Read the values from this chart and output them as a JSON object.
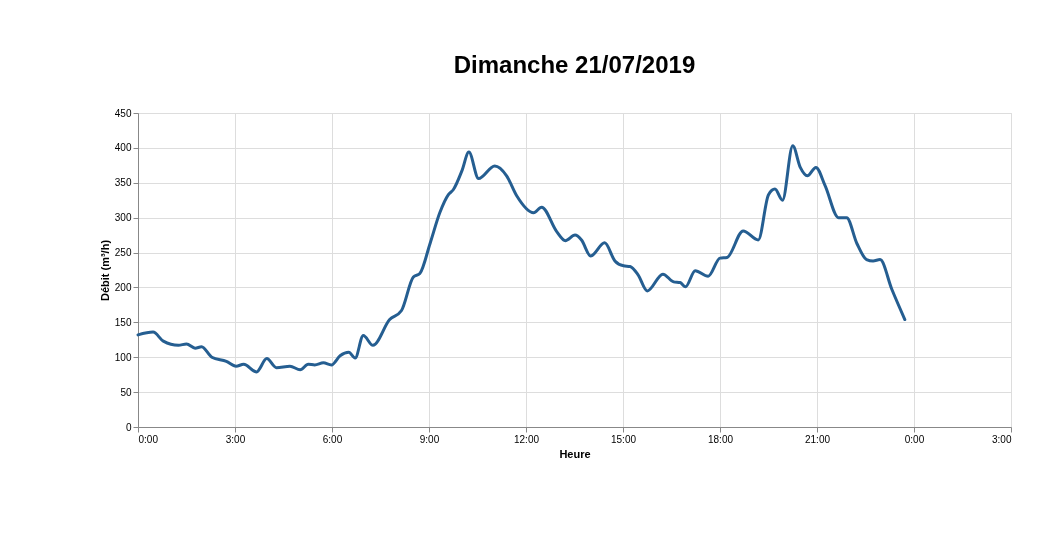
{
  "chart_data": {
    "type": "line",
    "title": "Dimanche 21/07/2019",
    "xlabel": "Heure",
    "ylabel": "Débit (m³/h)",
    "x": [
      "2019-07-21T00:00",
      "2019-07-21T00:28",
      "2019-07-21T00:47",
      "2019-07-21T01:15",
      "2019-07-21T01:30",
      "2019-07-21T01:46",
      "2019-07-21T01:58",
      "2019-07-21T02:17",
      "2019-07-21T02:44",
      "2019-07-21T03:02",
      "2019-07-21T03:16",
      "2019-07-21T03:40",
      "2019-07-21T03:59",
      "2019-07-21T04:17",
      "2019-07-21T04:42",
      "2019-07-21T05:01",
      "2019-07-21T05:16",
      "2019-07-21T05:28",
      "2019-07-21T05:44",
      "2019-07-21T05:59",
      "2019-07-21T06:15",
      "2019-07-21T06:31",
      "2019-07-21T06:43",
      "2019-07-21T06:58",
      "2019-07-21T07:16",
      "2019-07-21T07:47",
      "2019-07-21T08:09",
      "2019-07-21T08:31",
      "2019-07-21T08:43",
      "2019-07-21T09:02",
      "2019-07-21T09:20",
      "2019-07-21T09:36",
      "2019-07-21T09:45",
      "2019-07-21T10:01",
      "2019-07-21T10:14",
      "2019-07-21T10:32",
      "2019-07-21T11:02",
      "2019-07-21T11:24",
      "2019-07-21T11:43",
      "2019-07-21T12:14",
      "2019-07-21T12:29",
      "2019-07-21T12:57",
      "2019-07-21T13:13",
      "2019-07-21T13:31",
      "2019-07-21T13:43",
      "2019-07-21T14:00",
      "2019-07-21T14:26",
      "2019-07-21T14:45",
      "2019-07-21T15:01",
      "2019-07-21T15:13",
      "2019-07-21T15:28",
      "2019-07-21T15:45",
      "2019-07-21T16:14",
      "2019-07-21T16:34",
      "2019-07-21T16:46",
      "2019-07-21T16:56",
      "2019-07-21T17:14",
      "2019-07-21T17:38",
      "2019-07-21T18:00",
      "2019-07-21T18:13",
      "2019-07-21T18:43",
      "2019-07-21T19:11",
      "2019-07-21T19:30",
      "2019-07-21T19:42",
      "2019-07-21T19:56",
      "2019-07-21T20:15",
      "2019-07-21T20:29",
      "2019-07-21T20:42",
      "2019-07-21T20:58",
      "2019-07-21T21:15",
      "2019-07-21T21:40",
      "2019-07-21T21:55",
      "2019-07-21T22:14",
      "2019-07-21T22:32",
      "2019-07-21T22:44",
      "2019-07-21T22:57",
      "2019-07-21T23:19",
      "2019-07-21T23:43"
    ],
    "series": [
      {
        "color": "#255e91",
        "values": [
          132,
          136,
          123,
          117,
          119,
          113,
          115,
          100,
          94,
          87,
          90,
          79,
          98,
          85,
          87,
          82,
          90,
          89,
          92,
          89,
          102,
          107,
          99,
          131,
          117,
          154,
          167,
          215,
          220,
          263,
          307,
          333,
          340,
          367,
          394,
          356,
          374,
          360,
          331,
          307,
          315,
          280,
          267,
          275,
          268,
          245,
          264,
          238,
          231,
          230,
          218,
          195,
          219,
          208,
          207,
          201,
          224,
          216,
          242,
          243,
          281,
          268,
          333,
          341,
          325,
          403,
          372,
          360,
          372,
          346,
          300,
          300,
          263,
          240,
          238,
          240,
          197,
          154
        ]
      }
    ],
    "xlim": [
      "2019-07-21T00:00",
      "2019-07-22T03:00"
    ],
    "xticks": [
      {
        "value": "2019-07-21T00:00",
        "label": "0:00"
      },
      {
        "value": "2019-07-21T03:00",
        "label": "3:00"
      },
      {
        "value": "2019-07-21T06:00",
        "label": "6:00"
      },
      {
        "value": "2019-07-21T09:00",
        "label": "9:00"
      },
      {
        "value": "2019-07-21T12:00",
        "label": "12:00"
      },
      {
        "value": "2019-07-21T15:00",
        "label": "15:00"
      },
      {
        "value": "2019-07-21T18:00",
        "label": "18:00"
      },
      {
        "value": "2019-07-21T21:00",
        "label": "21:00"
      },
      {
        "value": "2019-07-22T00:00",
        "label": "0:00"
      },
      {
        "value": "2019-07-22T03:00",
        "label": "3:00"
      }
    ],
    "ylim": [
      0,
      450
    ],
    "yticks": [
      0,
      50,
      100,
      150,
      200,
      250,
      300,
      350,
      400,
      450
    ],
    "grid": true,
    "marker": "none",
    "line_style": "solid"
  }
}
